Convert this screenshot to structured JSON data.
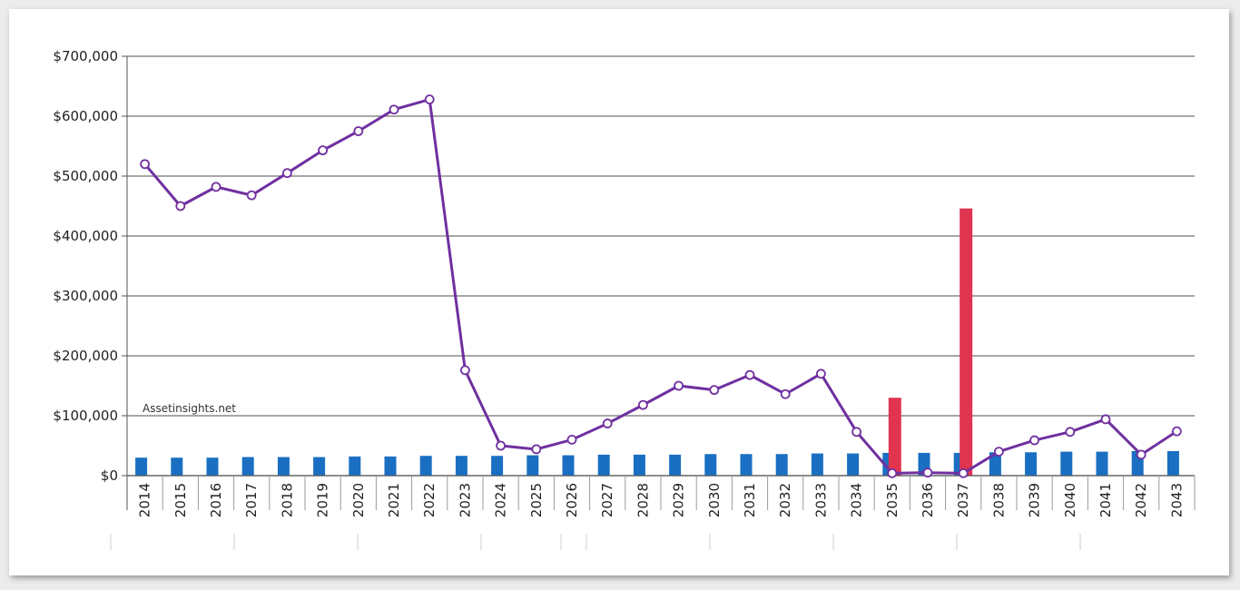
{
  "watermark": "Assetinsights.net",
  "colors": {
    "blue_bar": "#1a6fc2",
    "red_bar": "#e0344f",
    "line": "#7030a0",
    "grid": "#8a8a8a"
  },
  "chart_data": {
    "type": "bar",
    "title": "",
    "xlabel": "",
    "ylabel": "",
    "ylim": [
      0,
      700000
    ],
    "yticks": [
      "$0",
      "$100,000",
      "$200,000",
      "$300,000",
      "$400,000",
      "$500,000",
      "$600,000",
      "$700,000"
    ],
    "grid": true,
    "categories": [
      "2014",
      "2015",
      "2016",
      "2017",
      "2018",
      "2019",
      "2020",
      "2021",
      "2022",
      "2023",
      "2024",
      "2025",
      "2026",
      "2027",
      "2028",
      "2029",
      "2030",
      "2031",
      "2032",
      "2033",
      "2034",
      "2035",
      "2036",
      "2037",
      "2038",
      "2039",
      "2040",
      "2041",
      "2042",
      "2043"
    ],
    "series": [
      {
        "type": "bar",
        "color": "#1a6fc2",
        "values": [
          30000,
          30000,
          30000,
          31000,
          31000,
          31000,
          32000,
          32000,
          33000,
          33000,
          33000,
          34000,
          34000,
          35000,
          35000,
          35000,
          36000,
          36000,
          36000,
          37000,
          37000,
          38000,
          38000,
          38000,
          39000,
          39000,
          40000,
          40000,
          41000,
          41000
        ]
      },
      {
        "type": "bar",
        "color": "#e0344f",
        "values": [
          0,
          0,
          0,
          0,
          0,
          0,
          0,
          0,
          0,
          0,
          0,
          0,
          0,
          0,
          0,
          0,
          0,
          0,
          0,
          0,
          0,
          130000,
          0,
          446000,
          0,
          0,
          0,
          0,
          0,
          0
        ]
      },
      {
        "type": "line",
        "color": "#7030a0",
        "values": [
          520000,
          450000,
          482000,
          468000,
          505000,
          543000,
          575000,
          611000,
          628000,
          176000,
          50000,
          44000,
          60000,
          87000,
          118000,
          150000,
          143000,
          168000,
          136000,
          170000,
          73000,
          4000,
          5000,
          4000,
          40000,
          59000,
          73000,
          94000,
          35000,
          74000
        ]
      }
    ]
  }
}
